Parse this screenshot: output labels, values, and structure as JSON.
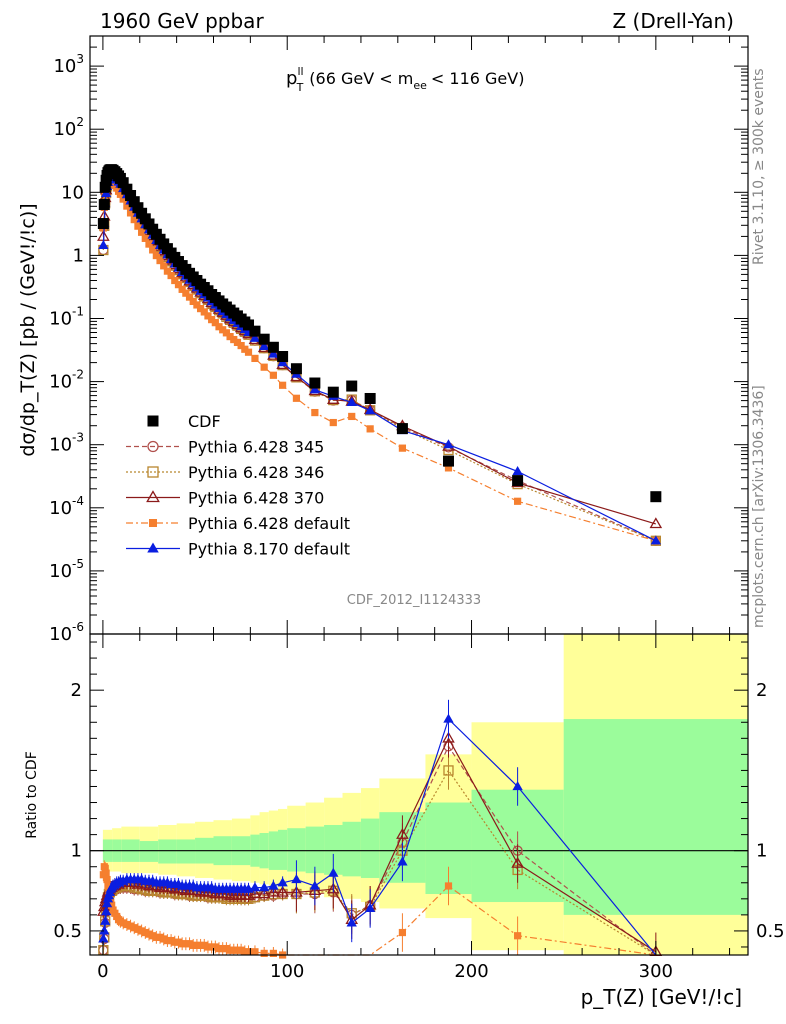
{
  "header": {
    "left": "1960 GeV ppbar",
    "right": "Z (Drell-Yan)"
  },
  "side_labels": {
    "rivet": "Rivet 3.1.10, ≥ 300k events",
    "mcplots": "mcplots.cern.ch [arXiv:1306.3436]"
  },
  "plot_label": {
    "main": "p",
    "sup": "ll",
    "sub": "T",
    "rest": "(66 GeV < m",
    "rest_sub": "ee",
    "rest_end": "< 116 GeV)"
  },
  "analysis_id": "CDF_2012_I1124333",
  "colors": {
    "cdf": "#000000",
    "py345": "#b0504c",
    "py346": "#b8862e",
    "py370": "#8b1a1a",
    "py6def": "#f57f2f",
    "py8def": "#0a1ee0",
    "band_green": "#9bfc9b",
    "band_yellow": "#ffff99"
  },
  "chart_data": [
    {
      "type": "scatter",
      "panel": "main",
      "ylabel": "dσ/dp_T(Z) [pb / (GeV!/!c)]",
      "yscale": "log",
      "ylim": [
        1e-06,
        3000
      ],
      "xlim": [
        -7,
        350
      ],
      "y_ticks": [
        "10^{-6}",
        "10^{-5}",
        "10^{-4}",
        "10^{-3}",
        "10^{-2}",
        "10^{-1}",
        "1",
        "10",
        "10^{2}",
        "10^{3}"
      ],
      "legend": {
        "position": "lower-left",
        "entries": [
          {
            "label": "CDF",
            "marker": "square-filled",
            "series": "cdf"
          },
          {
            "label": "Pythia 6.428 345",
            "marker": "circle-open",
            "series": "py345"
          },
          {
            "label": "Pythia 6.428 346",
            "marker": "square-open",
            "series": "py346"
          },
          {
            "label": "Pythia 6.428 370",
            "marker": "triangle-open",
            "series": "py370"
          },
          {
            "label": "Pythia 6.428 default",
            "marker": "square-small",
            "series": "py6def"
          },
          {
            "label": "Pythia 8.170 default",
            "marker": "triangle-filled",
            "series": "py8def"
          }
        ]
      },
      "x": [
        0.25,
        0.75,
        1.25,
        1.75,
        2.25,
        2.75,
        3.25,
        3.75,
        4.25,
        4.75,
        5.5,
        6.5,
        7.5,
        8.5,
        9.5,
        11,
        13,
        15,
        17,
        19,
        21,
        23,
        25,
        27,
        29,
        31,
        33,
        35,
        37,
        39,
        41,
        43,
        45,
        47,
        49,
        51,
        53,
        55,
        57,
        59,
        61,
        63,
        65,
        67,
        69,
        71,
        73,
        75,
        77,
        79,
        82.5,
        87.5,
        92.5,
        97.5,
        105,
        115,
        125,
        135,
        145,
        162.5,
        187.5,
        225,
        300
      ],
      "series": [
        {
          "name": "CDF",
          "key": "cdf",
          "values": [
            3.2,
            6.4,
            12,
            15.5,
            18.5,
            20.5,
            21.7,
            22.5,
            22.8,
            22.8,
            22.3,
            21.2,
            19.8,
            18.2,
            16.6,
            14.2,
            11.2,
            8.9,
            7.1,
            5.7,
            4.65,
            3.8,
            3.15,
            2.6,
            2.16,
            1.8,
            1.52,
            1.28,
            1.09,
            0.93,
            0.8,
            0.69,
            0.6,
            0.52,
            0.455,
            0.4,
            0.35,
            0.31,
            0.275,
            0.24,
            0.215,
            0.19,
            0.17,
            0.152,
            0.136,
            0.122,
            0.11,
            0.098,
            0.088,
            0.079,
            0.063,
            0.047,
            0.035,
            0.025,
            0.016,
            0.0095,
            0.0068,
            0.0085,
            0.0054,
            0.0018,
            0.00055,
            0.00027,
            0.00015
          ]
        }
      ],
      "fallback_note": ""
    },
    {
      "type": "area",
      "panel": "ratio",
      "ylabel": "Ratio to CDF",
      "xlabel": "p_T(Z) [GeV!/!c]",
      "ylim": [
        0.35,
        2.35
      ],
      "xlim": [
        -7,
        350
      ],
      "x_ticks": [
        0,
        100,
        200,
        300
      ],
      "y_ticks": [
        0.5,
        1,
        2
      ],
      "band_edges": [
        0,
        5,
        10,
        20,
        30,
        40,
        50,
        60,
        70,
        80,
        85,
        90,
        95,
        100,
        110,
        120,
        130,
        140,
        150,
        175,
        200,
        250,
        350
      ],
      "band_green": [
        [
          0.93,
          1.07
        ],
        [
          0.93,
          1.07
        ],
        [
          0.93,
          1.07
        ],
        [
          0.93,
          1.06
        ],
        [
          0.92,
          1.07
        ],
        [
          0.92,
          1.07
        ],
        [
          0.92,
          1.08
        ],
        [
          0.91,
          1.09
        ],
        [
          0.91,
          1.09
        ],
        [
          0.9,
          1.1
        ],
        [
          0.89,
          1.11
        ],
        [
          0.88,
          1.12
        ],
        [
          0.88,
          1.13
        ],
        [
          0.87,
          1.14
        ],
        [
          0.86,
          1.15
        ],
        [
          0.85,
          1.16
        ],
        [
          0.84,
          1.18
        ],
        [
          0.83,
          1.2
        ],
        [
          0.8,
          1.24
        ],
        [
          0.73,
          1.3
        ],
        [
          0.68,
          1.38
        ],
        [
          0.6,
          1.82
        ],
        [
          0.35,
          1.82
        ]
      ],
      "band_yellow": [
        [
          0.87,
          1.13
        ],
        [
          0.87,
          1.14
        ],
        [
          0.86,
          1.15
        ],
        [
          0.86,
          1.15
        ],
        [
          0.85,
          1.16
        ],
        [
          0.84,
          1.17
        ],
        [
          0.83,
          1.18
        ],
        [
          0.82,
          1.19
        ],
        [
          0.81,
          1.2
        ],
        [
          0.8,
          1.22
        ],
        [
          0.79,
          1.24
        ],
        [
          0.78,
          1.25
        ],
        [
          0.76,
          1.26
        ],
        [
          0.75,
          1.28
        ],
        [
          0.73,
          1.3
        ],
        [
          0.71,
          1.33
        ],
        [
          0.7,
          1.36
        ],
        [
          0.68,
          1.39
        ],
        [
          0.64,
          1.45
        ],
        [
          0.58,
          1.6
        ],
        [
          0.38,
          1.8
        ],
        [
          0.35,
          2.35
        ],
        [
          0.35,
          2.35
        ]
      ],
      "series": [
        {
          "name": "Pythia 6.428 345",
          "key": "py345",
          "values": [
            0.38,
            0.45,
            0.55,
            0.62,
            0.66,
            0.7,
            0.72,
            0.73,
            0.74,
            0.74,
            0.75,
            0.76,
            0.76,
            0.77,
            0.77,
            0.77,
            0.77,
            0.77,
            0.76,
            0.76,
            0.76,
            0.75,
            0.75,
            0.75,
            0.75,
            0.74,
            0.74,
            0.74,
            0.74,
            0.73,
            0.73,
            0.73,
            0.73,
            0.72,
            0.72,
            0.72,
            0.72,
            0.72,
            0.71,
            0.71,
            0.71,
            0.71,
            0.71,
            0.71,
            0.71,
            0.71,
            0.71,
            0.7,
            0.7,
            0.7,
            0.71,
            0.72,
            0.72,
            0.73,
            0.73,
            0.73,
            0.74,
            0.6,
            0.66,
            1.05,
            1.65,
            1.0,
            0.2
          ]
        },
        {
          "name": "Pythia 6.428 346",
          "key": "py346",
          "values": [
            0.38,
            0.46,
            0.56,
            0.63,
            0.67,
            0.71,
            0.73,
            0.74,
            0.75,
            0.75,
            0.76,
            0.77,
            0.77,
            0.78,
            0.78,
            0.78,
            0.78,
            0.78,
            0.77,
            0.77,
            0.76,
            0.76,
            0.75,
            0.75,
            0.75,
            0.75,
            0.74,
            0.74,
            0.74,
            0.74,
            0.73,
            0.73,
            0.73,
            0.73,
            0.72,
            0.72,
            0.72,
            0.72,
            0.72,
            0.71,
            0.71,
            0.71,
            0.71,
            0.7,
            0.7,
            0.7,
            0.7,
            0.7,
            0.7,
            0.7,
            0.71,
            0.72,
            0.73,
            0.73,
            0.73,
            0.74,
            0.75,
            0.61,
            0.65,
            1.0,
            1.5,
            0.88,
            0.2
          ]
        },
        {
          "name": "Pythia 6.428 370",
          "key": "py370",
          "values": [
            0.62,
            0.65,
            0.68,
            0.7,
            0.72,
            0.74,
            0.75,
            0.76,
            0.77,
            0.77,
            0.78,
            0.78,
            0.79,
            0.79,
            0.8,
            0.8,
            0.8,
            0.8,
            0.8,
            0.79,
            0.79,
            0.79,
            0.78,
            0.78,
            0.78,
            0.77,
            0.77,
            0.77,
            0.77,
            0.76,
            0.76,
            0.76,
            0.75,
            0.75,
            0.75,
            0.75,
            0.74,
            0.74,
            0.74,
            0.74,
            0.73,
            0.73,
            0.73,
            0.73,
            0.72,
            0.72,
            0.72,
            0.72,
            0.72,
            0.72,
            0.73,
            0.73,
            0.74,
            0.74,
            0.74,
            0.75,
            0.76,
            0.57,
            0.66,
            1.1,
            1.7,
            0.92,
            0.37
          ]
        },
        {
          "name": "Pythia 6.428 default",
          "key": "py6def",
          "values": [
            0.85,
            0.9,
            0.89,
            0.86,
            0.82,
            0.78,
            0.74,
            0.7,
            0.68,
            0.66,
            0.63,
            0.61,
            0.59,
            0.57,
            0.56,
            0.55,
            0.54,
            0.53,
            0.52,
            0.51,
            0.5,
            0.49,
            0.48,
            0.47,
            0.46,
            0.46,
            0.45,
            0.44,
            0.44,
            0.43,
            0.43,
            0.42,
            0.42,
            0.42,
            0.41,
            0.41,
            0.41,
            0.41,
            0.4,
            0.4,
            0.4,
            0.39,
            0.39,
            0.39,
            0.38,
            0.38,
            0.38,
            0.38,
            0.37,
            0.37,
            0.37,
            0.36,
            0.36,
            0.35,
            0.34,
            0.34,
            0.33,
            0.33,
            0.33,
            0.49,
            0.78,
            0.47,
            0.2
          ]
        },
        {
          "name": "Pythia 8.170 default",
          "key": "py8def",
          "values": [
            0.45,
            0.5,
            0.56,
            0.62,
            0.67,
            0.7,
            0.72,
            0.74,
            0.76,
            0.77,
            0.78,
            0.79,
            0.8,
            0.8,
            0.81,
            0.81,
            0.82,
            0.82,
            0.82,
            0.82,
            0.82,
            0.81,
            0.81,
            0.81,
            0.8,
            0.8,
            0.8,
            0.8,
            0.79,
            0.79,
            0.79,
            0.78,
            0.78,
            0.78,
            0.78,
            0.77,
            0.77,
            0.77,
            0.77,
            0.77,
            0.76,
            0.76,
            0.76,
            0.76,
            0.76,
            0.76,
            0.76,
            0.76,
            0.76,
            0.76,
            0.77,
            0.77,
            0.78,
            0.8,
            0.82,
            0.78,
            0.86,
            0.55,
            0.64,
            0.93,
            1.82,
            1.4,
            0.2
          ]
        }
      ]
    }
  ]
}
